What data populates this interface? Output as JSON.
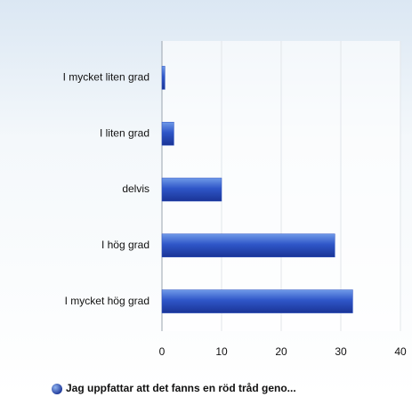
{
  "chart_data": {
    "type": "bar",
    "orientation": "horizontal",
    "categories": [
      "I mycket liten grad",
      "I liten grad",
      "delvis",
      "I hög grad",
      "I mycket hög grad"
    ],
    "series": [
      {
        "name": "Jag uppfattar att det fanns en röd tråd geno...",
        "color": "#2a4fc0",
        "values": [
          0.5,
          2,
          10,
          29,
          32
        ]
      }
    ],
    "xlim": [
      0,
      40
    ],
    "xticks": [
      0,
      10,
      20,
      30,
      40
    ],
    "grid": true,
    "legend": "bottom"
  }
}
